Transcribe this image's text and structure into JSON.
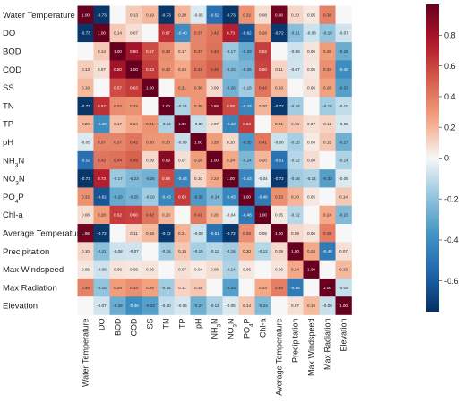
{
  "chart_data": {
    "type": "heatmap",
    "title": "",
    "labels": [
      "Water Temperature",
      "DO",
      "BOD",
      "COD",
      "SS",
      "TN",
      "TP",
      "pH",
      "NH3N",
      "NO3N",
      "PO4P",
      "Chl-a",
      "Average Temperature",
      "Precipitation",
      "Max Windspeed",
      "Max Radiation",
      "Elevation"
    ],
    "label_display": [
      {
        "main": "Water Temperature",
        "sub": ""
      },
      {
        "main": "DO",
        "sub": ""
      },
      {
        "main": "BOD",
        "sub": ""
      },
      {
        "main": "COD",
        "sub": ""
      },
      {
        "main": "SS",
        "sub": ""
      },
      {
        "main": "TN",
        "sub": ""
      },
      {
        "main": "TP",
        "sub": ""
      },
      {
        "main": "pH",
        "sub": ""
      },
      {
        "main": "NH",
        "sub": "3",
        "tail": "N"
      },
      {
        "main": "NO",
        "sub": "3",
        "tail": "N"
      },
      {
        "main": "PO",
        "sub": "4",
        "tail": "P"
      },
      {
        "main": "Chl-a",
        "sub": ""
      },
      {
        "main": "Average Temperature",
        "sub": ""
      },
      {
        "main": "Precipitation",
        "sub": ""
      },
      {
        "main": "Max Windspeed",
        "sub": ""
      },
      {
        "main": "Max Radiation",
        "sub": ""
      },
      {
        "main": "Elevation",
        "sub": ""
      }
    ],
    "matrix": [
      [
        1.0,
        -0.73,
        null,
        0.13,
        0.19,
        -0.73,
        0.2,
        -0.05,
        -0.52,
        -0.73,
        0.32,
        0.08,
        0.96,
        0.1,
        0.05,
        0.38,
        null
      ],
      [
        -0.73,
        1.0,
        0.14,
        0.07,
        null,
        0.67,
        -0.4,
        0.37,
        0.42,
        0.73,
        -0.62,
        0.28,
        -0.72,
        -0.21,
        -0.08,
        -0.19,
        -0.07
      ],
      [
        null,
        0.14,
        1.0,
        0.8,
        0.57,
        0.34,
        0.17,
        0.37,
        0.44,
        -0.17,
        -0.29,
        0.62,
        null,
        -0.08,
        0.06,
        0.28,
        -0.28
      ],
      [
        0.13,
        0.07,
        0.8,
        1.0,
        0.63,
        0.32,
        0.24,
        0.42,
        0.49,
        -0.23,
        -0.25,
        0.6,
        0.11,
        -0.07,
        0.05,
        0.33,
        -0.4
      ],
      [
        0.19,
        null,
        0.57,
        0.63,
        1.0,
        null,
        0.31,
        0.3,
        0.09,
        -0.26,
        -0.16,
        0.42,
        0.19,
        null,
        0.06,
        0.26,
        -0.33
      ],
      [
        -0.73,
        0.67,
        0.34,
        0.32,
        null,
        1.0,
        -0.14,
        0.3,
        0.89,
        0.58,
        -0.43,
        0.2,
        -0.72,
        -0.16,
        null,
        -0.16,
        -0.1
      ],
      [
        0.2,
        -0.4,
        0.17,
        0.24,
        0.31,
        -0.14,
        1.0,
        -0.09,
        0.07,
        -0.43,
        0.63,
        null,
        0.21,
        0.15,
        0.07,
        0.11,
        -0.06
      ],
      [
        -0.05,
        0.37,
        0.37,
        0.42,
        0.3,
        0.3,
        -0.09,
        1.0,
        0.28,
        0.1,
        -0.35,
        0.41,
        -0.08,
        -0.15,
        0.04,
        0.15,
        -0.27
      ],
      [
        -0.52,
        0.42,
        0.44,
        0.49,
        0.09,
        0.89,
        0.07,
        0.28,
        1.0,
        0.24,
        -0.24,
        0.2,
        -0.51,
        -0.12,
        0.08,
        null,
        -0.14
      ],
      [
        -0.73,
        0.73,
        -0.17,
        -0.23,
        -0.26,
        0.58,
        -0.43,
        0.1,
        0.24,
        1.0,
        -0.43,
        -0.04,
        -0.72,
        -0.16,
        -0.14,
        -0.33,
        -0.05
      ],
      [
        0.32,
        -0.62,
        -0.29,
        -0.25,
        -0.16,
        -0.43,
        0.63,
        -0.35,
        -0.24,
        -0.43,
        1.0,
        -0.48,
        0.33,
        0.2,
        0.05,
        null,
        0.14
      ],
      [
        0.08,
        0.28,
        0.62,
        0.6,
        0.42,
        0.2,
        null,
        0.41,
        0.2,
        -0.04,
        -0.48,
        1.0,
        0.05,
        -0.12,
        null,
        0.24,
        -0.23
      ],
      [
        0.96,
        -0.72,
        null,
        0.11,
        0.19,
        -0.72,
        0.21,
        -0.08,
        -0.51,
        -0.72,
        0.33,
        0.05,
        1.0,
        0.09,
        0.06,
        0.39,
        null
      ],
      [
        0.1,
        -0.21,
        -0.08,
        -0.07,
        null,
        -0.16,
        0.15,
        -0.15,
        -0.12,
        -0.16,
        0.2,
        -0.12,
        0.09,
        1.0,
        0.24,
        -0.48,
        0.07
      ],
      [
        0.05,
        -0.08,
        0.06,
        0.05,
        0.06,
        null,
        0.07,
        0.04,
        0.08,
        -0.14,
        0.05,
        null,
        0.06,
        0.24,
        1.0,
        null,
        0.19
      ],
      [
        0.38,
        -0.19,
        0.28,
        0.33,
        0.26,
        -0.16,
        0.11,
        0.15,
        null,
        -0.33,
        null,
        0.24,
        0.39,
        -0.48,
        null,
        1.0,
        -0.09
      ],
      [
        null,
        -0.07,
        -0.28,
        -0.4,
        -0.33,
        -0.1,
        -0.06,
        -0.27,
        -0.14,
        -0.05,
        0.14,
        -0.23,
        null,
        0.07,
        0.19,
        -0.09,
        1.0
      ]
    ],
    "vmin": -0.75,
    "vmax": 1.0,
    "colormap": "RdBu_r",
    "colorbar_ticks": [
      0.8,
      0.6,
      0.4,
      0.2,
      0,
      -0.2,
      -0.4,
      -0.6
    ],
    "colors": {
      "low": "#053061",
      "mid": "#f7f7f7",
      "high": "#67001f"
    }
  }
}
